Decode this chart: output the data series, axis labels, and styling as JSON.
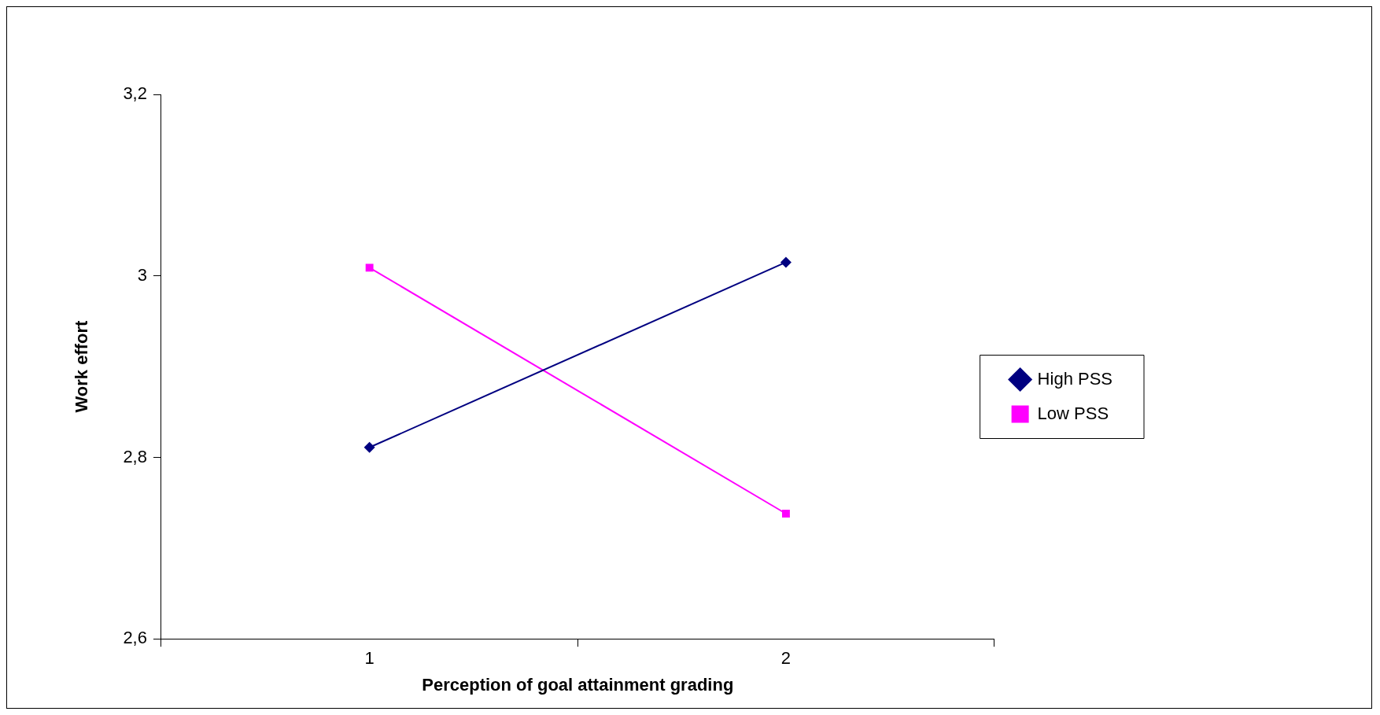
{
  "chart_data": {
    "type": "line",
    "xlabel": "Perception of goal attainment grading",
    "ylabel": "Work effort",
    "categories": [
      "1",
      "2"
    ],
    "series": [
      {
        "name": "High PSS",
        "color": "#000080",
        "values": [
          2.811,
          3.015
        ],
        "marker": "diamond"
      },
      {
        "name": "Low PSS",
        "color": "#ff00ff",
        "values": [
          3.009,
          2.738
        ],
        "marker": "square"
      }
    ],
    "ylim": [
      2.6,
      3.2
    ],
    "yticks": [
      {
        "value": 2.6,
        "label": "2,6"
      },
      {
        "value": 2.8,
        "label": "2,8"
      },
      3,
      {
        "value": 3.2,
        "label": "3,2"
      }
    ],
    "grid": false,
    "legend": "right",
    "line_style": "solid"
  }
}
